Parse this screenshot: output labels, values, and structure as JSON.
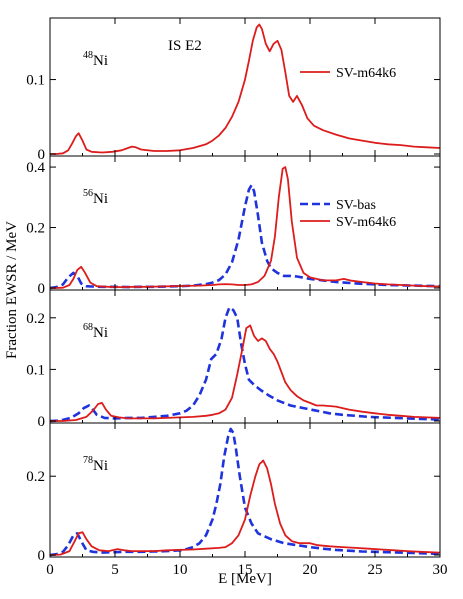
{
  "chart_data": {
    "type": "line",
    "title": "",
    "xlabel": "E [MeV]",
    "ylabel": "Fraction EWSR / MeV",
    "xlim": [
      0,
      30
    ],
    "x_ticks": [
      "0",
      "5",
      "10",
      "15",
      "20",
      "25",
      "30"
    ],
    "shared_x": true,
    "grid": false,
    "colors": {
      "SV-m64k6": "#dd1c1c",
      "SV-bas": "#1f33dd"
    },
    "annotation": "IS E2",
    "panels": [
      {
        "nucleus": {
          "mass": "48",
          "symbol": "Ni"
        },
        "ylim": [
          0,
          0.18
        ],
        "y_ticks": [
          {
            "v": 0,
            "label": "0"
          },
          {
            "v": 0.1,
            "label": "0.1"
          }
        ],
        "legend": [
          {
            "name": "SV-m64k6",
            "style": "solid"
          }
        ],
        "legend_position": "upper-right",
        "series": [
          {
            "name": "SV-m64k6",
            "style": "solid",
            "x": [
              0,
              0.5,
              1,
              1.4,
              1.7,
              2,
              2.2,
              2.5,
              2.8,
              3.2,
              4,
              4.8,
              5.5,
              6,
              6.3,
              6.6,
              7,
              8,
              9,
              10,
              11,
              12,
              12.5,
              13,
              13.5,
              14,
              14.5,
              15,
              15.3,
              15.6,
              15.9,
              16.1,
              16.3,
              16.6,
              16.9,
              17.2,
              17.5,
              17.8,
              18.1,
              18.4,
              18.7,
              19,
              19.4,
              19.8,
              20.3,
              21,
              22,
              23,
              24,
              25,
              26,
              27,
              28,
              29,
              30
            ],
            "y": [
              0,
              0,
              0.001,
              0.005,
              0.014,
              0.024,
              0.028,
              0.018,
              0.006,
              0.003,
              0.002,
              0.003,
              0.005,
              0.008,
              0.01,
              0.009,
              0.006,
              0.004,
              0.004,
              0.005,
              0.008,
              0.013,
              0.018,
              0.025,
              0.035,
              0.05,
              0.07,
              0.1,
              0.125,
              0.152,
              0.17,
              0.174,
              0.168,
              0.148,
              0.138,
              0.148,
              0.152,
              0.14,
              0.11,
              0.078,
              0.07,
              0.078,
              0.065,
              0.048,
              0.038,
              0.032,
              0.026,
              0.021,
              0.018,
              0.015,
              0.013,
              0.012,
              0.01,
              0.009,
              0.008
            ]
          }
        ]
      },
      {
        "nucleus": {
          "mass": "56",
          "symbol": "Ni"
        },
        "ylim": [
          0,
          0.43
        ],
        "y_ticks": [
          {
            "v": 0,
            "label": "0"
          },
          {
            "v": 0.2,
            "label": "0.2"
          },
          {
            "v": 0.4,
            "label": "0.4"
          }
        ],
        "legend": [
          {
            "name": "SV-bas",
            "style": "dashed"
          },
          {
            "name": "SV-m64k6",
            "style": "solid"
          }
        ],
        "legend_position": "upper-right",
        "series": [
          {
            "name": "SV-bas",
            "style": "dashed",
            "x": [
              0,
              0.5,
              1,
              1.4,
              1.8,
              2.1,
              2.4,
              2.8,
              3.2,
              4,
              5,
              6,
              7,
              8,
              9,
              10,
              11,
              12,
              12.5,
              13,
              13.5,
              14,
              14.5,
              15,
              15.3,
              15.5,
              15.7,
              16,
              16.3,
              16.7,
              17,
              17.5,
              18,
              18.5,
              19,
              20,
              21,
              22,
              23,
              24,
              25,
              26,
              27,
              28,
              29,
              30
            ],
            "y": [
              0,
              0.003,
              0.012,
              0.035,
              0.05,
              0.04,
              0.015,
              0.006,
              0.005,
              0.004,
              0.004,
              0.003,
              0.004,
              0.004,
              0.005,
              0.006,
              0.008,
              0.013,
              0.018,
              0.026,
              0.045,
              0.085,
              0.16,
              0.27,
              0.325,
              0.34,
              0.32,
              0.24,
              0.15,
              0.09,
              0.065,
              0.05,
              0.04,
              0.04,
              0.038,
              0.03,
              0.025,
              0.02,
              0.017,
              0.014,
              0.012,
              0.01,
              0.009,
              0.008,
              0.007,
              0.006
            ]
          },
          {
            "name": "SV-m64k6",
            "style": "solid",
            "x": [
              0,
              0.5,
              1,
              1.5,
              1.8,
              2.1,
              2.4,
              2.7,
              3.1,
              3.6,
              4.5,
              5.5,
              6.5,
              7.5,
              8.5,
              9.5,
              10.5,
              11.5,
              12.5,
              13,
              13.5,
              14,
              14.5,
              15,
              15.5,
              16,
              16.5,
              17,
              17.3,
              17.6,
              17.9,
              18.1,
              18.3,
              18.6,
              19,
              19.5,
              20,
              21,
              22,
              22.6,
              23.2,
              24,
              25,
              26,
              27,
              28,
              29,
              30
            ],
            "y": [
              0,
              0,
              0.001,
              0.01,
              0.03,
              0.06,
              0.07,
              0.05,
              0.018,
              0.006,
              0.004,
              0.003,
              0.004,
              0.004,
              0.005,
              0.006,
              0.007,
              0.008,
              0.01,
              0.012,
              0.013,
              0.012,
              0.01,
              0.01,
              0.012,
              0.02,
              0.04,
              0.09,
              0.17,
              0.3,
              0.395,
              0.4,
              0.36,
              0.22,
              0.1,
              0.05,
              0.035,
              0.025,
              0.025,
              0.03,
              0.024,
              0.02,
              0.015,
              0.012,
              0.01,
              0.008,
              0.006,
              0.005
            ]
          }
        ]
      },
      {
        "nucleus": {
          "mass": "68",
          "symbol": "Ni"
        },
        "ylim": [
          0,
          0.25
        ],
        "y_ticks": [
          {
            "v": 0,
            "label": "0"
          },
          {
            "v": 0.1,
            "label": "0.1"
          },
          {
            "v": 0.2,
            "label": "0.2"
          }
        ],
        "legend": [],
        "series": [
          {
            "name": "SV-bas",
            "style": "dashed",
            "x": [
              0,
              0.8,
              1.6,
              2.2,
              2.6,
              3,
              3.3,
              3.6,
              4.2,
              5,
              6,
              7,
              8,
              9,
              10,
              10.5,
              11,
              11.5,
              12,
              12.4,
              12.8,
              13.2,
              13.5,
              13.8,
              14.1,
              14.4,
              14.7,
              15,
              15.3,
              15.7,
              16.2,
              16.8,
              17.5,
              18.5,
              19.5,
              20.5,
              21.5,
              22.5,
              23.5,
              24.5,
              25.5,
              26.5,
              27.5,
              28.5,
              30
            ],
            "y": [
              0,
              0.001,
              0.006,
              0.015,
              0.025,
              0.03,
              0.022,
              0.012,
              0.006,
              0.005,
              0.006,
              0.006,
              0.008,
              0.01,
              0.015,
              0.02,
              0.03,
              0.05,
              0.08,
              0.12,
              0.13,
              0.16,
              0.2,
              0.22,
              0.215,
              0.2,
              0.15,
              0.11,
              0.08,
              0.07,
              0.06,
              0.05,
              0.04,
              0.03,
              0.025,
              0.02,
              0.015,
              0.012,
              0.01,
              0.008,
              0.007,
              0.006,
              0.005,
              0.004,
              0.003
            ]
          },
          {
            "name": "SV-m64k6",
            "style": "solid",
            "x": [
              0,
              1,
              2,
              2.8,
              3.3,
              3.7,
              4,
              4.3,
              4.7,
              5.3,
              6,
              7,
              8,
              9,
              10,
              11,
              12,
              12.5,
              13,
              13.5,
              14,
              14.4,
              14.8,
              15.1,
              15.4,
              15.7,
              16,
              16.3,
              16.6,
              16.9,
              17.2,
              17.5,
              17.8,
              18.1,
              18.5,
              19,
              19.5,
              20,
              20.5,
              21,
              22,
              23,
              24,
              25,
              26,
              27,
              28,
              29,
              30
            ],
            "y": [
              0,
              0,
              0.002,
              0.008,
              0.02,
              0.033,
              0.035,
              0.022,
              0.01,
              0.007,
              0.005,
              0.005,
              0.005,
              0.006,
              0.007,
              0.008,
              0.01,
              0.012,
              0.015,
              0.022,
              0.045,
              0.09,
              0.14,
              0.18,
              0.185,
              0.165,
              0.155,
              0.16,
              0.155,
              0.14,
              0.13,
              0.115,
              0.095,
              0.075,
              0.06,
              0.048,
              0.04,
              0.035,
              0.03,
              0.03,
              0.028,
              0.022,
              0.018,
              0.015,
              0.012,
              0.01,
              0.008,
              0.007,
              0.006
            ]
          }
        ]
      },
      {
        "nucleus": {
          "mass": "78",
          "symbol": "Ni"
        },
        "ylim": [
          0,
          0.33
        ],
        "y_ticks": [
          {
            "v": 0,
            "label": "0"
          },
          {
            "v": 0.2,
            "label": "0.2"
          }
        ],
        "legend": [],
        "series": [
          {
            "name": "SV-bas",
            "style": "dashed",
            "x": [
              0,
              0.5,
              1,
              1.4,
              1.8,
              2.1,
              2.4,
              2.8,
              3.3,
              4,
              5,
              6,
              7,
              8,
              9,
              10,
              10.5,
              11,
              11.5,
              12,
              12.5,
              12.8,
              13.1,
              13.4,
              13.7,
              13.9,
              14.1,
              14.3,
              14.6,
              15,
              15.5,
              16,
              17,
              18,
              19,
              20,
              21,
              22,
              23,
              24,
              25,
              26,
              27,
              28,
              29,
              30
            ],
            "y": [
              0,
              0.002,
              0.008,
              0.025,
              0.05,
              0.055,
              0.035,
              0.012,
              0.008,
              0.006,
              0.007,
              0.008,
              0.008,
              0.009,
              0.01,
              0.012,
              0.015,
              0.02,
              0.03,
              0.05,
              0.09,
              0.13,
              0.18,
              0.25,
              0.3,
              0.32,
              0.31,
              0.27,
              0.2,
              0.12,
              0.08,
              0.055,
              0.04,
              0.03,
              0.025,
              0.02,
              0.016,
              0.013,
              0.011,
              0.009,
              0.008,
              0.007,
              0.006,
              0.005,
              0.004,
              0.003
            ]
          },
          {
            "name": "SV-m64k6",
            "style": "solid",
            "x": [
              0,
              0.8,
              1.5,
              1.9,
              2.2,
              2.5,
              2.8,
              3.2,
              3.8,
              4.5,
              5.2,
              5.7,
              6.3,
              7,
              8,
              9,
              10,
              11,
              12,
              13,
              13.5,
              14,
              14.5,
              15,
              15.4,
              15.8,
              16.1,
              16.4,
              16.7,
              17,
              17.3,
              17.7,
              18.1,
              18.6,
              19.2,
              20,
              20.6,
              21.5,
              22.5,
              23.5,
              24.5,
              25.5,
              26.5,
              27.5,
              28.5,
              30
            ],
            "y": [
              0,
              0.001,
              0.01,
              0.035,
              0.055,
              0.058,
              0.04,
              0.022,
              0.012,
              0.01,
              0.015,
              0.012,
              0.01,
              0.01,
              0.01,
              0.012,
              0.013,
              0.014,
              0.016,
              0.018,
              0.02,
              0.03,
              0.05,
              0.09,
              0.15,
              0.2,
              0.23,
              0.24,
              0.22,
              0.18,
              0.13,
              0.08,
              0.05,
              0.035,
              0.03,
              0.03,
              0.025,
              0.022,
              0.02,
              0.018,
              0.016,
              0.014,
              0.012,
              0.01,
              0.008,
              0.006
            ]
          }
        ]
      }
    ]
  }
}
